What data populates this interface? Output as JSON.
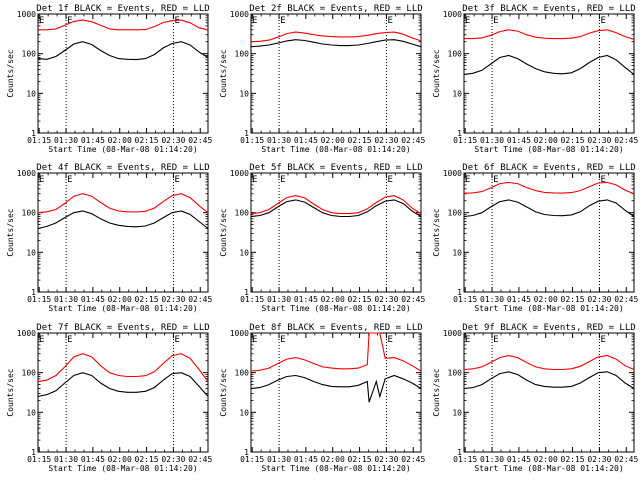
{
  "page": {
    "ylabel": "Counts/sec",
    "xlabel": "Start Time (08-Mar-08 01:14:20)",
    "e_marker": "E"
  },
  "colors": {
    "events": "#000000",
    "lld": "#ff0000",
    "axes": "#000000",
    "background": "#ffffff"
  },
  "chart_data": [
    {
      "type": "line",
      "title": "Det 1f BLACK = Events, RED = LLD",
      "x_ticks": [
        "01:15",
        "01:30",
        "01:45",
        "02:00",
        "02:15",
        "02:30",
        "02:45"
      ],
      "y_ticks": [
        "1",
        "10",
        "100",
        "1000"
      ],
      "ylim": [
        1,
        1000
      ],
      "log_y": true,
      "x_range_minutes": [
        0,
        95
      ],
      "eclipse_markers_min": [
        15.7,
        75.7
      ],
      "series": [
        {
          "name": "Events",
          "color": "#000000",
          "x": [
            0,
            5,
            10,
            15,
            20,
            25,
            30,
            35,
            40,
            45,
            50,
            55,
            60,
            65,
            70,
            75,
            80,
            85,
            90,
            95
          ],
          "y": [
            75,
            72,
            85,
            120,
            175,
            200,
            170,
            120,
            90,
            75,
            72,
            71,
            75,
            95,
            140,
            180,
            200,
            165,
            110,
            80
          ]
        },
        {
          "name": "LLD",
          "color": "#ff0000",
          "x": [
            0,
            5,
            10,
            15,
            20,
            25,
            30,
            35,
            40,
            45,
            50,
            55,
            60,
            65,
            70,
            75,
            80,
            85,
            90,
            95
          ],
          "y": [
            400,
            400,
            420,
            520,
            650,
            700,
            640,
            520,
            420,
            400,
            400,
            400,
            405,
            480,
            610,
            680,
            700,
            600,
            450,
            400
          ]
        }
      ]
    },
    {
      "type": "line",
      "title": "Det 2f BLACK = Events, RED = LLD",
      "x_ticks": [
        "01:15",
        "01:30",
        "01:45",
        "02:00",
        "02:15",
        "02:30",
        "02:45"
      ],
      "y_ticks": [
        "1",
        "10",
        "100",
        "1000"
      ],
      "ylim": [
        1,
        1000
      ],
      "log_y": true,
      "x_range_minutes": [
        0,
        95
      ],
      "eclipse_markers_min": [
        15.7,
        75.7
      ],
      "series": [
        {
          "name": "Events",
          "color": "#000000",
          "x": [
            0,
            5,
            10,
            15,
            20,
            25,
            30,
            35,
            40,
            45,
            50,
            55,
            60,
            65,
            70,
            75,
            80,
            85,
            90,
            95
          ],
          "y": [
            150,
            155,
            165,
            185,
            210,
            225,
            215,
            195,
            175,
            165,
            160,
            160,
            165,
            180,
            200,
            220,
            225,
            205,
            175,
            150
          ]
        },
        {
          "name": "LLD",
          "color": "#ff0000",
          "x": [
            0,
            5,
            10,
            15,
            20,
            25,
            30,
            35,
            40,
            45,
            50,
            55,
            60,
            65,
            70,
            75,
            80,
            85,
            90,
            95
          ],
          "y": [
            200,
            205,
            220,
            260,
            320,
            350,
            330,
            300,
            280,
            270,
            265,
            265,
            270,
            290,
            320,
            340,
            350,
            310,
            250,
            210
          ]
        }
      ]
    },
    {
      "type": "line",
      "title": "Det 3f BLACK = Events, RED = LLD",
      "x_ticks": [
        "01:15",
        "01:30",
        "01:45",
        "02:00",
        "02:15",
        "02:30",
        "02:45"
      ],
      "y_ticks": [
        "1",
        "10",
        "100",
        "1000"
      ],
      "ylim": [
        1,
        1000
      ],
      "log_y": true,
      "x_range_minutes": [
        0,
        95
      ],
      "eclipse_markers_min": [
        15.7,
        75.7
      ],
      "series": [
        {
          "name": "Events",
          "color": "#000000",
          "x": [
            0,
            5,
            10,
            15,
            20,
            25,
            30,
            35,
            40,
            45,
            50,
            55,
            60,
            65,
            70,
            75,
            80,
            85,
            90,
            95
          ],
          "y": [
            30,
            32,
            38,
            55,
            80,
            90,
            75,
            55,
            42,
            35,
            32,
            31,
            33,
            42,
            60,
            80,
            90,
            70,
            45,
            30
          ]
        },
        {
          "name": "LLD",
          "color": "#ff0000",
          "x": [
            0,
            5,
            10,
            15,
            20,
            25,
            30,
            35,
            40,
            45,
            50,
            55,
            60,
            65,
            70,
            75,
            80,
            85,
            90,
            95
          ],
          "y": [
            240,
            240,
            250,
            290,
            360,
            400,
            370,
            300,
            260,
            245,
            240,
            240,
            245,
            270,
            330,
            380,
            400,
            340,
            270,
            230
          ]
        }
      ]
    },
    {
      "type": "line",
      "title": "Det 4f BLACK = Events, RED = LLD",
      "x_ticks": [
        "01:15",
        "01:30",
        "01:45",
        "02:00",
        "02:15",
        "02:30",
        "02:45"
      ],
      "y_ticks": [
        "1",
        "10",
        "100",
        "1000"
      ],
      "ylim": [
        1,
        1000
      ],
      "log_y": true,
      "x_range_minutes": [
        0,
        95
      ],
      "eclipse_markers_min": [
        15.7,
        75.7
      ],
      "series": [
        {
          "name": "Events",
          "color": "#000000",
          "x": [
            0,
            5,
            10,
            15,
            20,
            25,
            30,
            35,
            40,
            45,
            50,
            55,
            60,
            65,
            70,
            75,
            80,
            85,
            90,
            95
          ],
          "y": [
            40,
            45,
            55,
            75,
            100,
            110,
            95,
            70,
            55,
            48,
            45,
            44,
            46,
            55,
            75,
            100,
            110,
            90,
            60,
            40
          ]
        },
        {
          "name": "LLD",
          "color": "#ff0000",
          "x": [
            0,
            5,
            10,
            15,
            20,
            25,
            30,
            35,
            40,
            45,
            50,
            55,
            60,
            65,
            70,
            75,
            80,
            85,
            90,
            95
          ],
          "y": [
            100,
            105,
            120,
            170,
            260,
            300,
            260,
            180,
            130,
            110,
            105,
            104,
            108,
            130,
            190,
            270,
            300,
            240,
            150,
            100
          ]
        }
      ]
    },
    {
      "type": "line",
      "title": "Det 5f BLACK = Events, RED = LLD",
      "x_ticks": [
        "01:15",
        "01:30",
        "01:45",
        "02:00",
        "02:15",
        "02:30",
        "02:45"
      ],
      "y_ticks": [
        "1",
        "10",
        "100",
        "1000"
      ],
      "ylim": [
        1,
        1000
      ],
      "log_y": true,
      "x_range_minutes": [
        0,
        95
      ],
      "eclipse_markers_min": [
        15.7,
        75.7
      ],
      "series": [
        {
          "name": "Events",
          "color": "#000000",
          "x": [
            0,
            5,
            10,
            15,
            20,
            25,
            30,
            35,
            40,
            45,
            50,
            55,
            60,
            65,
            70,
            75,
            80,
            85,
            90,
            95
          ],
          "y": [
            80,
            85,
            100,
            140,
            190,
            210,
            185,
            135,
            100,
            85,
            80,
            80,
            85,
            105,
            150,
            195,
            210,
            170,
            110,
            80
          ]
        },
        {
          "name": "LLD",
          "color": "#ff0000",
          "x": [
            0,
            5,
            10,
            15,
            20,
            25,
            30,
            35,
            40,
            45,
            50,
            55,
            60,
            65,
            70,
            75,
            80,
            85,
            90,
            95
          ],
          "y": [
            95,
            100,
            120,
            170,
            240,
            270,
            235,
            165,
            120,
            100,
            95,
            95,
            100,
            125,
            180,
            245,
            270,
            210,
            130,
            95
          ]
        }
      ]
    },
    {
      "type": "line",
      "title": "Det 6f BLACK = Events, RED = LLD",
      "x_ticks": [
        "01:15",
        "01:30",
        "01:45",
        "02:00",
        "02:15",
        "02:30",
        "02:45"
      ],
      "y_ticks": [
        "1",
        "10",
        "100",
        "1000"
      ],
      "ylim": [
        1,
        1000
      ],
      "log_y": true,
      "x_range_minutes": [
        0,
        95
      ],
      "eclipse_markers_min": [
        15.7,
        75.7
      ],
      "series": [
        {
          "name": "Events",
          "color": "#000000",
          "x": [
            0,
            5,
            10,
            15,
            20,
            25,
            30,
            35,
            40,
            45,
            50,
            55,
            60,
            65,
            70,
            75,
            80,
            85,
            90,
            95
          ],
          "y": [
            80,
            85,
            100,
            140,
            190,
            210,
            185,
            140,
            105,
            90,
            85,
            84,
            88,
            105,
            150,
            195,
            210,
            175,
            115,
            80
          ]
        },
        {
          "name": "LLD",
          "color": "#ff0000",
          "x": [
            0,
            5,
            10,
            15,
            20,
            25,
            30,
            35,
            40,
            45,
            50,
            55,
            60,
            65,
            70,
            75,
            80,
            85,
            90,
            95
          ],
          "y": [
            310,
            315,
            340,
            420,
            540,
            580,
            540,
            430,
            360,
            325,
            315,
            312,
            320,
            360,
            450,
            560,
            580,
            500,
            370,
            300
          ]
        }
      ]
    },
    {
      "type": "line",
      "title": "Det 7f BLACK = Events, RED = LLD",
      "x_ticks": [
        "01:15",
        "01:30",
        "01:45",
        "02:00",
        "02:15",
        "02:30",
        "02:45"
      ],
      "y_ticks": [
        "1",
        "10",
        "100",
        "1000"
      ],
      "ylim": [
        1,
        1000
      ],
      "log_y": true,
      "x_range_minutes": [
        0,
        95
      ],
      "eclipse_markers_min": [
        15.7,
        75.7
      ],
      "series": [
        {
          "name": "Events",
          "color": "#000000",
          "x": [
            0,
            5,
            10,
            15,
            20,
            25,
            30,
            35,
            40,
            45,
            50,
            55,
            60,
            65,
            70,
            75,
            80,
            85,
            90,
            95
          ],
          "y": [
            25,
            28,
            35,
            55,
            85,
            100,
            85,
            55,
            40,
            34,
            32,
            32,
            34,
            42,
            65,
            95,
            100,
            80,
            45,
            25
          ]
        },
        {
          "name": "LLD",
          "color": "#ff0000",
          "x": [
            0,
            5,
            10,
            15,
            20,
            25,
            30,
            35,
            40,
            45,
            50,
            55,
            60,
            65,
            70,
            75,
            80,
            85,
            90,
            95
          ],
          "y": [
            60,
            65,
            85,
            140,
            250,
            300,
            250,
            150,
            100,
            85,
            80,
            80,
            84,
            105,
            170,
            270,
            300,
            230,
            120,
            60
          ]
        }
      ]
    },
    {
      "type": "line",
      "title": "Det 8f BLACK = Events, RED = LLD",
      "x_ticks": [
        "01:15",
        "01:30",
        "01:45",
        "02:00",
        "02:15",
        "02:30",
        "02:45"
      ],
      "y_ticks": [
        "1",
        "10",
        "100",
        "1000"
      ],
      "ylim": [
        1,
        1000
      ],
      "log_y": true,
      "x_range_minutes": [
        0,
        95
      ],
      "eclipse_markers_min": [
        15.7,
        75.7
      ],
      "series": [
        {
          "name": "Events",
          "color": "#000000",
          "x": [
            0,
            5,
            10,
            15,
            20,
            25,
            30,
            35,
            40,
            45,
            50,
            55,
            60,
            65,
            66,
            70,
            72,
            75,
            80,
            85,
            90,
            95
          ],
          "y": [
            40,
            42,
            50,
            65,
            80,
            85,
            75,
            60,
            50,
            45,
            44,
            44,
            48,
            60,
            18,
            60,
            25,
            70,
            85,
            70,
            55,
            40
          ]
        },
        {
          "name": "LLD",
          "color": "#ff0000",
          "x": [
            0,
            5,
            10,
            15,
            20,
            25,
            30,
            35,
            40,
            45,
            50,
            55,
            60,
            65,
            66,
            70,
            72,
            75,
            80,
            85,
            90,
            95
          ],
          "y": [
            110,
            115,
            130,
            170,
            220,
            240,
            210,
            170,
            140,
            130,
            125,
            125,
            130,
            160,
            1000,
            1000,
            1000,
            230,
            240,
            200,
            150,
            110
          ]
        }
      ]
    },
    {
      "type": "line",
      "title": "Det 9f BLACK = Events, RED = LLD",
      "x_ticks": [
        "01:15",
        "01:30",
        "01:45",
        "02:00",
        "02:15",
        "02:30",
        "02:45"
      ],
      "y_ticks": [
        "1",
        "10",
        "100",
        "1000"
      ],
      "ylim": [
        1,
        1000
      ],
      "log_y": true,
      "x_range_minutes": [
        0,
        95
      ],
      "eclipse_markers_min": [
        15.7,
        75.7
      ],
      "series": [
        {
          "name": "Events",
          "color": "#000000",
          "x": [
            0,
            5,
            10,
            15,
            20,
            25,
            30,
            35,
            40,
            45,
            50,
            55,
            60,
            65,
            70,
            75,
            80,
            85,
            90,
            95
          ],
          "y": [
            40,
            42,
            50,
            70,
            95,
            105,
            90,
            65,
            50,
            45,
            43,
            43,
            45,
            55,
            75,
            100,
            105,
            85,
            55,
            40
          ]
        },
        {
          "name": "LLD",
          "color": "#ff0000",
          "x": [
            0,
            5,
            10,
            15,
            20,
            25,
            30,
            35,
            40,
            45,
            50,
            55,
            60,
            65,
            70,
            75,
            80,
            85,
            90,
            95
          ],
          "y": [
            120,
            125,
            140,
            180,
            240,
            270,
            240,
            180,
            140,
            125,
            120,
            120,
            125,
            145,
            190,
            250,
            270,
            220,
            150,
            120
          ]
        }
      ]
    }
  ]
}
